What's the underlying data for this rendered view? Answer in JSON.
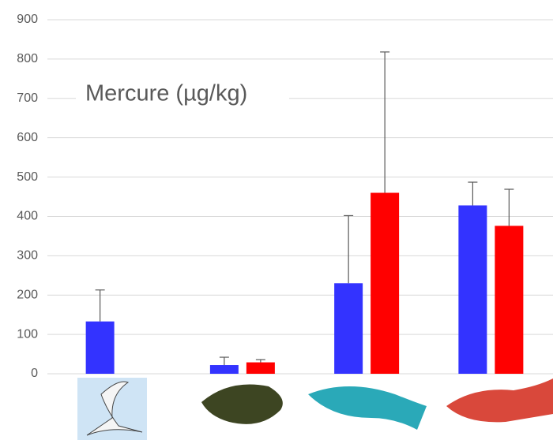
{
  "chart_data": {
    "type": "bar",
    "annotation": "Mercure (µg/kg)",
    "categories": [
      null,
      null,
      null,
      null
    ],
    "series": [
      {
        "color": "#3333ff",
        "values": [
          133,
          22,
          230,
          428
        ],
        "errors": [
          80,
          20,
          172,
          59
        ]
      },
      {
        "color": "#ff0000",
        "values": [
          null,
          29,
          460,
          376
        ],
        "errors": [
          null,
          7,
          358,
          93
        ]
      }
    ],
    "ylim": [
      0,
      900
    ],
    "yticks": [
      0,
      100,
      200,
      300,
      400,
      500,
      600,
      700,
      800,
      900
    ],
    "grid": true
  }
}
